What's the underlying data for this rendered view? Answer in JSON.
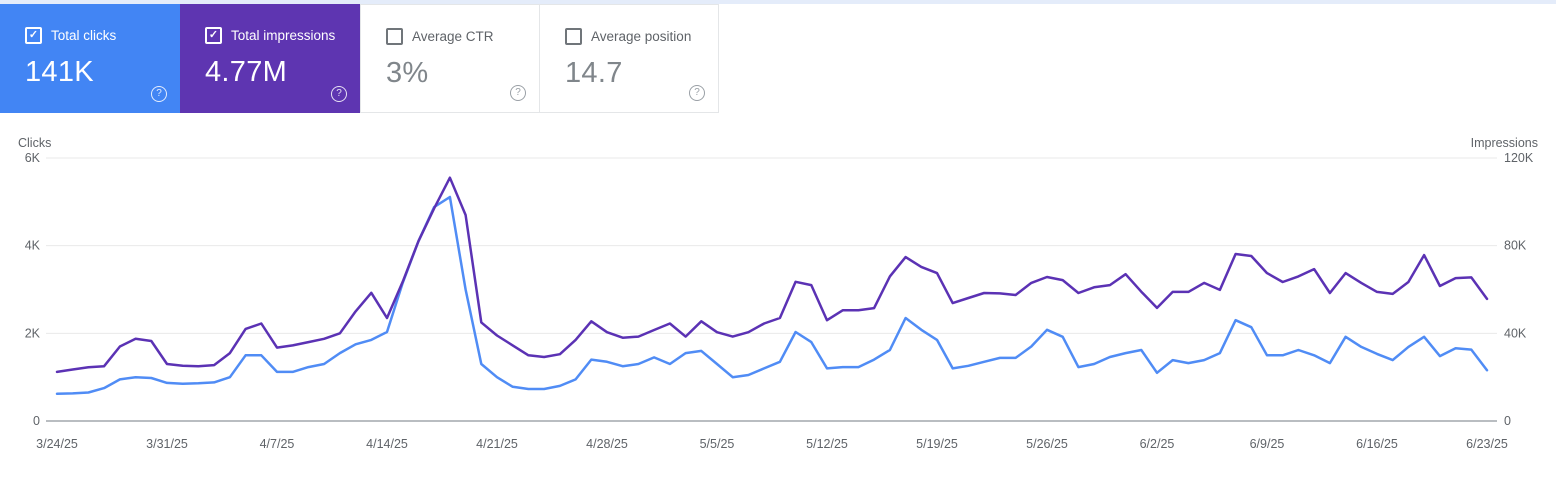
{
  "icons": {
    "check_glyph": "✓",
    "help_glyph": "?"
  },
  "cards": [
    {
      "label": "Total clicks",
      "value": "141K",
      "checked": true,
      "bg": "#4285f4"
    },
    {
      "label": "Total impressions",
      "value": "4.77M",
      "checked": true,
      "bg": "#5e35b1"
    },
    {
      "label": "Average CTR",
      "value": "3%",
      "checked": false,
      "bg": "#ffffff"
    },
    {
      "label": "Average position",
      "value": "14.7",
      "checked": false,
      "bg": "#ffffff"
    }
  ],
  "chart_data": {
    "type": "line",
    "frequency": "daily",
    "start_date": "3/24/25",
    "end_date": "6/23/25",
    "grid": true,
    "legend_position": "none",
    "left_axis": {
      "title": "Clicks",
      "ticks": [
        "0",
        "2K",
        "4K",
        "6K"
      ],
      "max": 6000
    },
    "right_axis": {
      "title": "Impressions",
      "ticks": [
        "0",
        "40K",
        "80K",
        "120K"
      ],
      "max": 120000
    },
    "x_tick_labels": [
      "3/24/25",
      "3/31/25",
      "4/7/25",
      "4/14/25",
      "4/21/25",
      "4/28/25",
      "5/5/25",
      "5/12/25",
      "5/19/25",
      "5/26/25",
      "6/2/25",
      "6/9/25",
      "6/16/25",
      "6/23/25"
    ],
    "series": [
      {
        "name": "Clicks",
        "axis": "left",
        "color": "#508cf5",
        "values": [
          620,
          630,
          650,
          750,
          950,
          1000,
          980,
          870,
          850,
          860,
          880,
          1000,
          1500,
          1500,
          1120,
          1120,
          1230,
          1300,
          1550,
          1750,
          1850,
          2030,
          3150,
          4100,
          4880,
          5110,
          3000,
          1300,
          1000,
          780,
          730,
          730,
          800,
          950,
          1400,
          1350,
          1250,
          1300,
          1450,
          1300,
          1550,
          1600,
          1300,
          1000,
          1050,
          1200,
          1350,
          2030,
          1800,
          1200,
          1230,
          1230,
          1400,
          1620,
          2350,
          2080,
          1850,
          1200,
          1260,
          1350,
          1440,
          1440,
          1700,
          2080,
          1920,
          1230,
          1300,
          1460,
          1550,
          1620,
          1100,
          1390,
          1320,
          1390,
          1550,
          2300,
          2140,
          1500,
          1500,
          1620,
          1500,
          1320,
          1920,
          1690,
          1530,
          1390,
          1690,
          1920,
          1480,
          1660,
          1630,
          1160
        ]
      },
      {
        "name": "Impressions",
        "axis": "right",
        "color": "#5b32b4",
        "values": [
          22400,
          23500,
          24500,
          25000,
          34000,
          37500,
          36500,
          26000,
          25200,
          25000,
          25500,
          31000,
          42000,
          44500,
          33500,
          34500,
          36000,
          37500,
          40000,
          50000,
          58500,
          47000,
          63500,
          82000,
          97000,
          111000,
          94000,
          45000,
          39000,
          34500,
          30000,
          29200,
          30500,
          37000,
          45500,
          40500,
          38000,
          38500,
          41500,
          44500,
          38500,
          45500,
          40500,
          38500,
          40500,
          44500,
          47000,
          63500,
          62000,
          46000,
          50500,
          50500,
          51500,
          66000,
          74800,
          70300,
          67500,
          53800,
          56100,
          58400,
          58200,
          57500,
          63000,
          65700,
          64300,
          58400,
          61000,
          62000,
          67000,
          59000,
          51600,
          58900,
          58900,
          63000,
          59800,
          76200,
          75300,
          67500,
          63400,
          66000,
          69300,
          58400,
          67500,
          63000,
          58900,
          58000,
          63400,
          75700,
          61600,
          65200,
          65500,
          55700
        ]
      }
    ]
  }
}
